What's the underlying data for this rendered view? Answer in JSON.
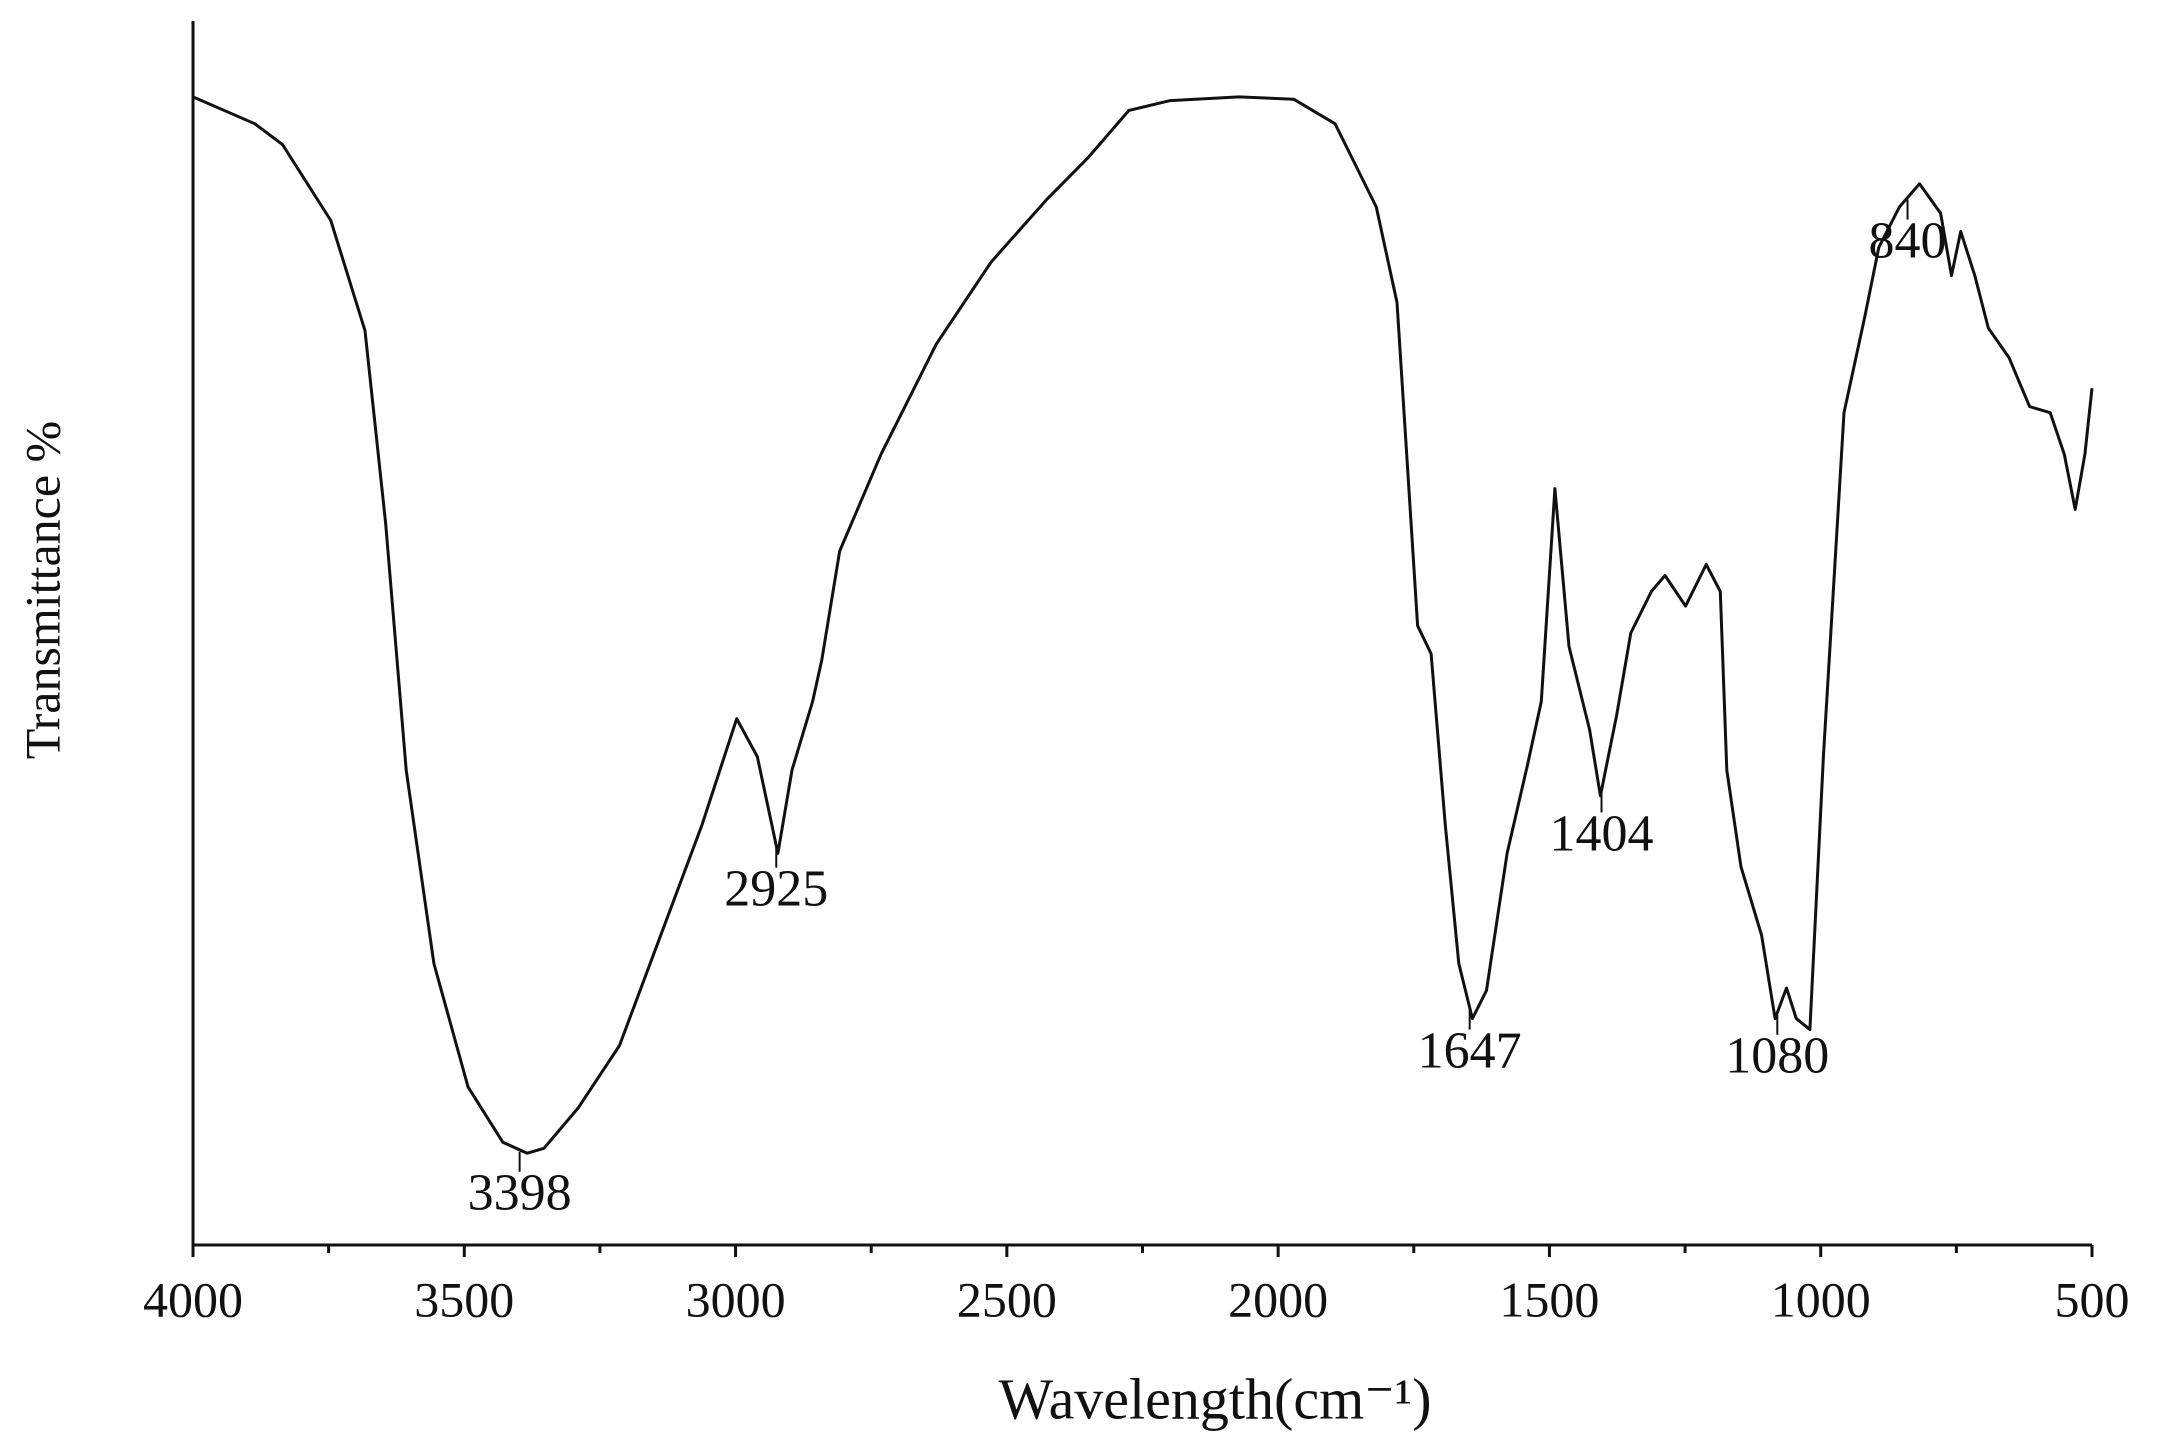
{
  "chart_data": {
    "type": "line",
    "x_label": "Wavelength(cm⁻¹)",
    "y_label": "Transmittance %",
    "xlim": [
      4000,
      500
    ],
    "ylim": [
      0,
      100
    ],
    "xticks": [
      4000,
      3500,
      3000,
      2500,
      2000,
      1500,
      1000,
      500
    ],
    "xminorticks": [
      3750,
      3250,
      2750,
      2250,
      1750,
      1250,
      750
    ],
    "series": [
      {
        "color": "#111111",
        "x": [
          4000,
          3886,
          3835,
          3746,
          3683,
          3645,
          3607,
          3556,
          3493,
          3429,
          3384,
          3353,
          3290,
          3214,
          3138,
          3062,
          2998,
          2960,
          2922,
          2896,
          2858,
          2841,
          2808,
          2732,
          2630,
          2529,
          2427,
          2351,
          2275,
          2199,
          2072,
          1971,
          1895,
          1819,
          1781,
          1763,
          1743,
          1718,
          1692,
          1667,
          1642,
          1616,
          1578,
          1540,
          1515,
          1490,
          1464,
          1426,
          1406,
          1376,
          1350,
          1312,
          1287,
          1249,
          1211,
          1185,
          1173,
          1147,
          1109,
          1084,
          1063,
          1045,
          1020,
          995,
          957,
          919,
          893,
          855,
          818,
          779,
          759,
          742,
          716,
          691,
          653,
          615,
          577,
          551,
          531,
          513,
          500
        ],
        "values": [
          93.8,
          91.6,
          89.9,
          83.7,
          74.7,
          59.0,
          38.8,
          23.0,
          12.9,
          8.4,
          7.5,
          7.9,
          11.2,
          16.3,
          25.3,
          34.3,
          43.0,
          39.9,
          32.0,
          38.8,
          44.4,
          47.8,
          56.7,
          64.6,
          73.6,
          80.3,
          85.4,
          88.8,
          92.7,
          93.5,
          93.8,
          93.6,
          91.6,
          84.8,
          77.0,
          64.6,
          50.6,
          48.3,
          34.3,
          23.0,
          18.5,
          20.8,
          32.0,
          39.3,
          44.4,
          61.8,
          48.9,
          42.1,
          36.7,
          43.3,
          50.0,
          53.4,
          54.7,
          52.2,
          55.6,
          53.4,
          38.8,
          30.9,
          25.3,
          18.5,
          21.0,
          18.5,
          17.6,
          39.9,
          68.0,
          75.8,
          81.5,
          84.8,
          86.7,
          84.3,
          79.2,
          82.8,
          79.2,
          74.9,
          72.5,
          68.5,
          68.0,
          64.6,
          60.1,
          64.6,
          70.0
        ]
      }
    ],
    "annotations": [
      {
        "text": "3398",
        "x": 3398
      },
      {
        "text": "2925",
        "x": 2925
      },
      {
        "text": "1647",
        "x": 1647
      },
      {
        "text": "1404",
        "x": 1404
      },
      {
        "text": "1080",
        "x": 1080
      },
      {
        "text": "840",
        "x": 840
      }
    ]
  }
}
